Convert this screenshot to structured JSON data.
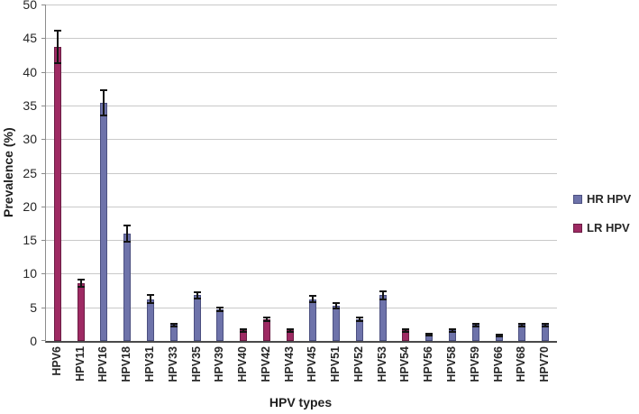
{
  "chart_data": {
    "type": "bar",
    "title": "",
    "xlabel": "HPV types",
    "ylabel": "Prevalence (%)",
    "ylim": [
      0,
      50
    ],
    "yticks": [
      0,
      5,
      10,
      15,
      20,
      25,
      30,
      35,
      40,
      45,
      50
    ],
    "grid": true,
    "legend_position": "right",
    "categories": [
      "HPV6",
      "HPV11",
      "HPV16",
      "HPV18",
      "HPV31",
      "HPV33",
      "HPV35",
      "HPV39",
      "HPV40",
      "HPV42",
      "HPV43",
      "HPV45",
      "HPV51",
      "HPV52",
      "HPV53",
      "HPV54",
      "HPV56",
      "HPV58",
      "HPV59",
      "HPV66",
      "HPV68",
      "HPV70"
    ],
    "series": [
      {
        "name": "HR HPV",
        "color": "#6E73AA",
        "border": "#4B4F80",
        "values": [
          null,
          null,
          35.4,
          16.0,
          6.2,
          2.4,
          6.8,
          4.7,
          null,
          null,
          null,
          6.2,
          5.2,
          3.2,
          6.8,
          null,
          0.9,
          1.6,
          2.4,
          0.8,
          2.4,
          2.4
        ]
      },
      {
        "name": "LR HPV",
        "color": "#9E2A63",
        "border": "#6B1C44",
        "values": [
          43.7,
          8.6,
          null,
          null,
          null,
          null,
          null,
          null,
          1.6,
          3.2,
          1.6,
          null,
          null,
          null,
          null,
          1.6,
          null,
          null,
          null,
          null,
          null,
          null
        ]
      }
    ],
    "error_bars": [
      2.4,
      0.5,
      1.9,
      1.2,
      0.6,
      0.2,
      0.5,
      0.3,
      0.2,
      0.3,
      0.2,
      0.5,
      0.4,
      0.3,
      0.6,
      0.2,
      0.15,
      0.2,
      0.2,
      0.15,
      0.2,
      0.2
    ],
    "error_bar_color": "#141414",
    "gridline_color": "#C9C9C9"
  }
}
